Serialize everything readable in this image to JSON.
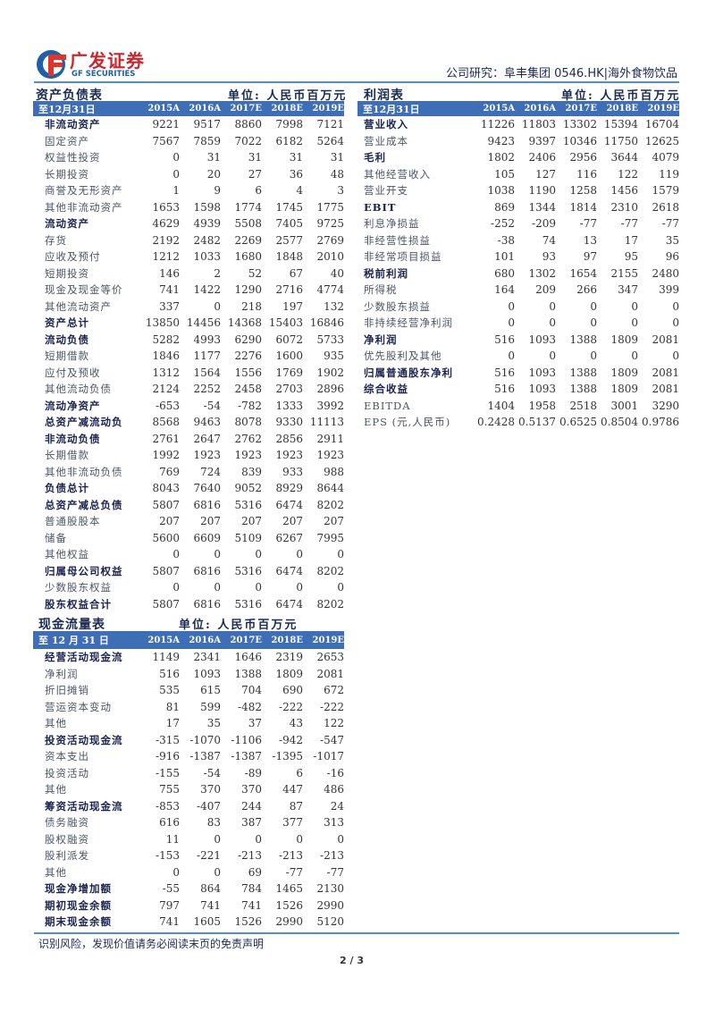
{
  "header": {
    "brand": "广发证券",
    "brand_en": "GF SECURITIES",
    "title": "公司研究：阜丰集团 0546.HK|海外食物饮品",
    "brand_colors": {
      "red": "#c8282d",
      "blue": "#1d5fa8"
    }
  },
  "balance": {
    "title": "资产负债表",
    "unit": "单位: 人民币百万元",
    "head": [
      "至12月31日",
      "2015A",
      "2016A",
      "2017E",
      "2018E",
      "2019E"
    ],
    "rows": [
      {
        "label": "非流动资产",
        "values": [
          "9221",
          "9517",
          "8860",
          "7998",
          "7121"
        ],
        "bold": true
      },
      {
        "label": "固定资产",
        "values": [
          "7567",
          "7859",
          "7022",
          "6182",
          "5264"
        ]
      },
      {
        "label": "权益性投资",
        "values": [
          "0",
          "31",
          "31",
          "31",
          "31"
        ]
      },
      {
        "label": "长期投资",
        "values": [
          "0",
          "20",
          "27",
          "36",
          "48"
        ]
      },
      {
        "label": "商誉及无形资产",
        "values": [
          "1",
          "9",
          "6",
          "4",
          "3"
        ]
      },
      {
        "label": "其他非流动资产",
        "values": [
          "1653",
          "1598",
          "1774",
          "1745",
          "1775"
        ]
      },
      {
        "label": "流动资产",
        "values": [
          "4629",
          "4939",
          "5508",
          "7405",
          "9725"
        ],
        "bold": true
      },
      {
        "label": "存货",
        "values": [
          "2192",
          "2482",
          "2269",
          "2577",
          "2769"
        ]
      },
      {
        "label": "应收及预付",
        "values": [
          "1212",
          "1033",
          "1680",
          "1848",
          "2010"
        ]
      },
      {
        "label": "短期投资",
        "values": [
          "146",
          "2",
          "52",
          "67",
          "40"
        ]
      },
      {
        "label": "现金及现金等价",
        "values": [
          "741",
          "1422",
          "1290",
          "2716",
          "4774"
        ]
      },
      {
        "label": "其他流动资产",
        "values": [
          "337",
          "0",
          "218",
          "197",
          "132"
        ]
      },
      {
        "label": "资产总计",
        "values": [
          "13850",
          "14456",
          "14368",
          "15403",
          "16846"
        ],
        "bold": true
      },
      {
        "label": "流动负债",
        "values": [
          "5282",
          "4993",
          "6290",
          "6072",
          "5733"
        ],
        "bold": true
      },
      {
        "label": "短期借款",
        "values": [
          "1846",
          "1177",
          "2276",
          "1600",
          "935"
        ]
      },
      {
        "label": "应付及预收",
        "values": [
          "1312",
          "1564",
          "1556",
          "1769",
          "1902"
        ]
      },
      {
        "label": "其他流动负债",
        "values": [
          "2124",
          "2252",
          "2458",
          "2703",
          "2896"
        ]
      },
      {
        "label": "流动净资产",
        "values": [
          "-653",
          "-54",
          "-782",
          "1333",
          "3992"
        ],
        "bold": true
      },
      {
        "label": "总资产减流动负",
        "values": [
          "8568",
          "9463",
          "8078",
          "9330",
          "11113"
        ],
        "bold": true
      },
      {
        "label": "非流动负债",
        "values": [
          "2761",
          "2647",
          "2762",
          "2856",
          "2911"
        ],
        "bold": true
      },
      {
        "label": "长期借款",
        "values": [
          "1992",
          "1923",
          "1923",
          "1923",
          "1923"
        ]
      },
      {
        "label": "其他非流动负债",
        "values": [
          "769",
          "724",
          "839",
          "933",
          "988"
        ]
      },
      {
        "label": "负债总计",
        "values": [
          "8043",
          "7640",
          "9052",
          "8929",
          "8644"
        ],
        "bold": true
      },
      {
        "label": "总资产减总负债",
        "values": [
          "5807",
          "6816",
          "5316",
          "6474",
          "8202"
        ],
        "bold": true
      },
      {
        "label": "普通股股本",
        "values": [
          "207",
          "207",
          "207",
          "207",
          "207"
        ]
      },
      {
        "label": "储备",
        "values": [
          "5600",
          "6609",
          "5109",
          "6267",
          "7995"
        ]
      },
      {
        "label": "其他权益",
        "values": [
          "0",
          "0",
          "0",
          "0",
          "0"
        ]
      },
      {
        "label": "归属母公司权益",
        "values": [
          "5807",
          "6816",
          "5316",
          "6474",
          "8202"
        ],
        "bold": true
      },
      {
        "label": "少数股东权益",
        "values": [
          "0",
          "0",
          "0",
          "0",
          "0"
        ]
      },
      {
        "label": "股东权益合计",
        "values": [
          "5807",
          "6816",
          "5316",
          "6474",
          "8202"
        ],
        "bold": true
      }
    ]
  },
  "income": {
    "title": "利润表",
    "unit": "单位: 人民币百万元",
    "head": [
      "至12月31日",
      "2015A",
      "2016A",
      "2017E",
      "2018E",
      "2019E"
    ],
    "rows": [
      {
        "label": "营业收入",
        "values": [
          "11226",
          "11803",
          "13302",
          "15394",
          "16704"
        ],
        "bold": true
      },
      {
        "label": "营业成本",
        "values": [
          "9423",
          "9397",
          "10346",
          "11750",
          "12625"
        ]
      },
      {
        "label": "毛利",
        "values": [
          "1802",
          "2406",
          "2956",
          "3644",
          "4079"
        ],
        "bold": true
      },
      {
        "label": "其他经营收入",
        "values": [
          "105",
          "127",
          "116",
          "122",
          "119"
        ]
      },
      {
        "label": "营业开支",
        "values": [
          "1038",
          "1190",
          "1258",
          "1456",
          "1579"
        ]
      },
      {
        "label": "EBIT",
        "values": [
          "869",
          "1344",
          "1814",
          "2310",
          "2618"
        ],
        "bold": true
      },
      {
        "label": "利息净损益",
        "values": [
          "-252",
          "-209",
          "-77",
          "-77",
          "-77"
        ]
      },
      {
        "label": "非经营性损益",
        "values": [
          "-38",
          "74",
          "13",
          "17",
          "35"
        ]
      },
      {
        "label": "非经常项目损益",
        "values": [
          "101",
          "93",
          "97",
          "95",
          "96"
        ]
      },
      {
        "label": "税前利润",
        "values": [
          "680",
          "1302",
          "1654",
          "2155",
          "2480"
        ],
        "bold": true
      },
      {
        "label": "所得税",
        "values": [
          "164",
          "209",
          "266",
          "347",
          "399"
        ]
      },
      {
        "label": "少数股东损益",
        "values": [
          "0",
          "0",
          "0",
          "0",
          "0"
        ]
      },
      {
        "label": "非持续经营净利润",
        "values": [
          "0",
          "0",
          "0",
          "0",
          "0"
        ]
      },
      {
        "label": "净利润",
        "values": [
          "516",
          "1093",
          "1388",
          "1809",
          "2081"
        ],
        "bold": true
      },
      {
        "label": "优先股利及其他",
        "values": [
          "0",
          "0",
          "0",
          "0",
          "0"
        ]
      },
      {
        "label": "归属普通股东净利",
        "values": [
          "516",
          "1093",
          "1388",
          "1809",
          "2081"
        ],
        "bold": true
      },
      {
        "label": "综合收益",
        "values": [
          "516",
          "1093",
          "1388",
          "1809",
          "2081"
        ],
        "bold": true
      },
      {
        "label": "EBITDA",
        "values": [
          "1404",
          "1958",
          "2518",
          "3001",
          "3290"
        ]
      },
      {
        "label": "EPS (元,人民币)",
        "values": [
          "0.2428",
          "0.5137",
          "0.6525",
          "0.8504",
          "0.9786"
        ]
      }
    ]
  },
  "cashflow": {
    "title": "现金流量表",
    "unit": "单位: 人民币百万元",
    "head": [
      "至 12 月 31 日",
      "2015A",
      "2016A",
      "2017E",
      "2018E",
      "2019E"
    ],
    "rows": [
      {
        "label": "经营活动现金流",
        "values": [
          "1149",
          "2341",
          "1646",
          "2319",
          "2653"
        ],
        "bold": true
      },
      {
        "label": "净利润",
        "values": [
          "516",
          "1093",
          "1388",
          "1809",
          "2081"
        ]
      },
      {
        "label": "折旧摊销",
        "values": [
          "535",
          "615",
          "704",
          "690",
          "672"
        ]
      },
      {
        "label": "营运资本变动",
        "values": [
          "81",
          "599",
          "-482",
          "-222",
          "-222"
        ]
      },
      {
        "label": "其他",
        "values": [
          "17",
          "35",
          "37",
          "43",
          "122"
        ]
      },
      {
        "label": "投资活动现金流",
        "values": [
          "-315",
          "-1070",
          "-1106",
          "-942",
          "-547"
        ],
        "bold": true
      },
      {
        "label": "资本支出",
        "values": [
          "-916",
          "-1387",
          "-1387",
          "-1395",
          "-1017"
        ]
      },
      {
        "label": "投资活动",
        "values": [
          "-155",
          "-54",
          "-89",
          "6",
          "-16"
        ]
      },
      {
        "label": "其他",
        "values": [
          "755",
          "370",
          "370",
          "447",
          "486"
        ]
      },
      {
        "label": "筹资活动现金流",
        "values": [
          "-853",
          "-407",
          "244",
          "87",
          "24"
        ],
        "bold": true
      },
      {
        "label": "债务融资",
        "values": [
          "616",
          "83",
          "387",
          "377",
          "313"
        ]
      },
      {
        "label": "股权融资",
        "values": [
          "11",
          "0",
          "0",
          "0",
          "0"
        ]
      },
      {
        "label": "股利派发",
        "values": [
          "-153",
          "-221",
          "-213",
          "-213",
          "-213"
        ]
      },
      {
        "label": "其他",
        "values": [
          "0",
          "0",
          "69",
          "-77",
          "-77"
        ]
      },
      {
        "label": "现金净增加额",
        "values": [
          "-55",
          "864",
          "784",
          "1465",
          "2130"
        ],
        "bold": true
      },
      {
        "label": "期初现金余额",
        "values": [
          "797",
          "741",
          "741",
          "1526",
          "2990"
        ],
        "bold": true
      },
      {
        "label": "期末现金余额",
        "values": [
          "741",
          "1605",
          "1526",
          "2990",
          "5120"
        ],
        "bold": true
      }
    ]
  },
  "footer": {
    "disclaimer": "识别风险，发现价值请务必阅读末页的免责声明",
    "page": "2 / 3"
  }
}
